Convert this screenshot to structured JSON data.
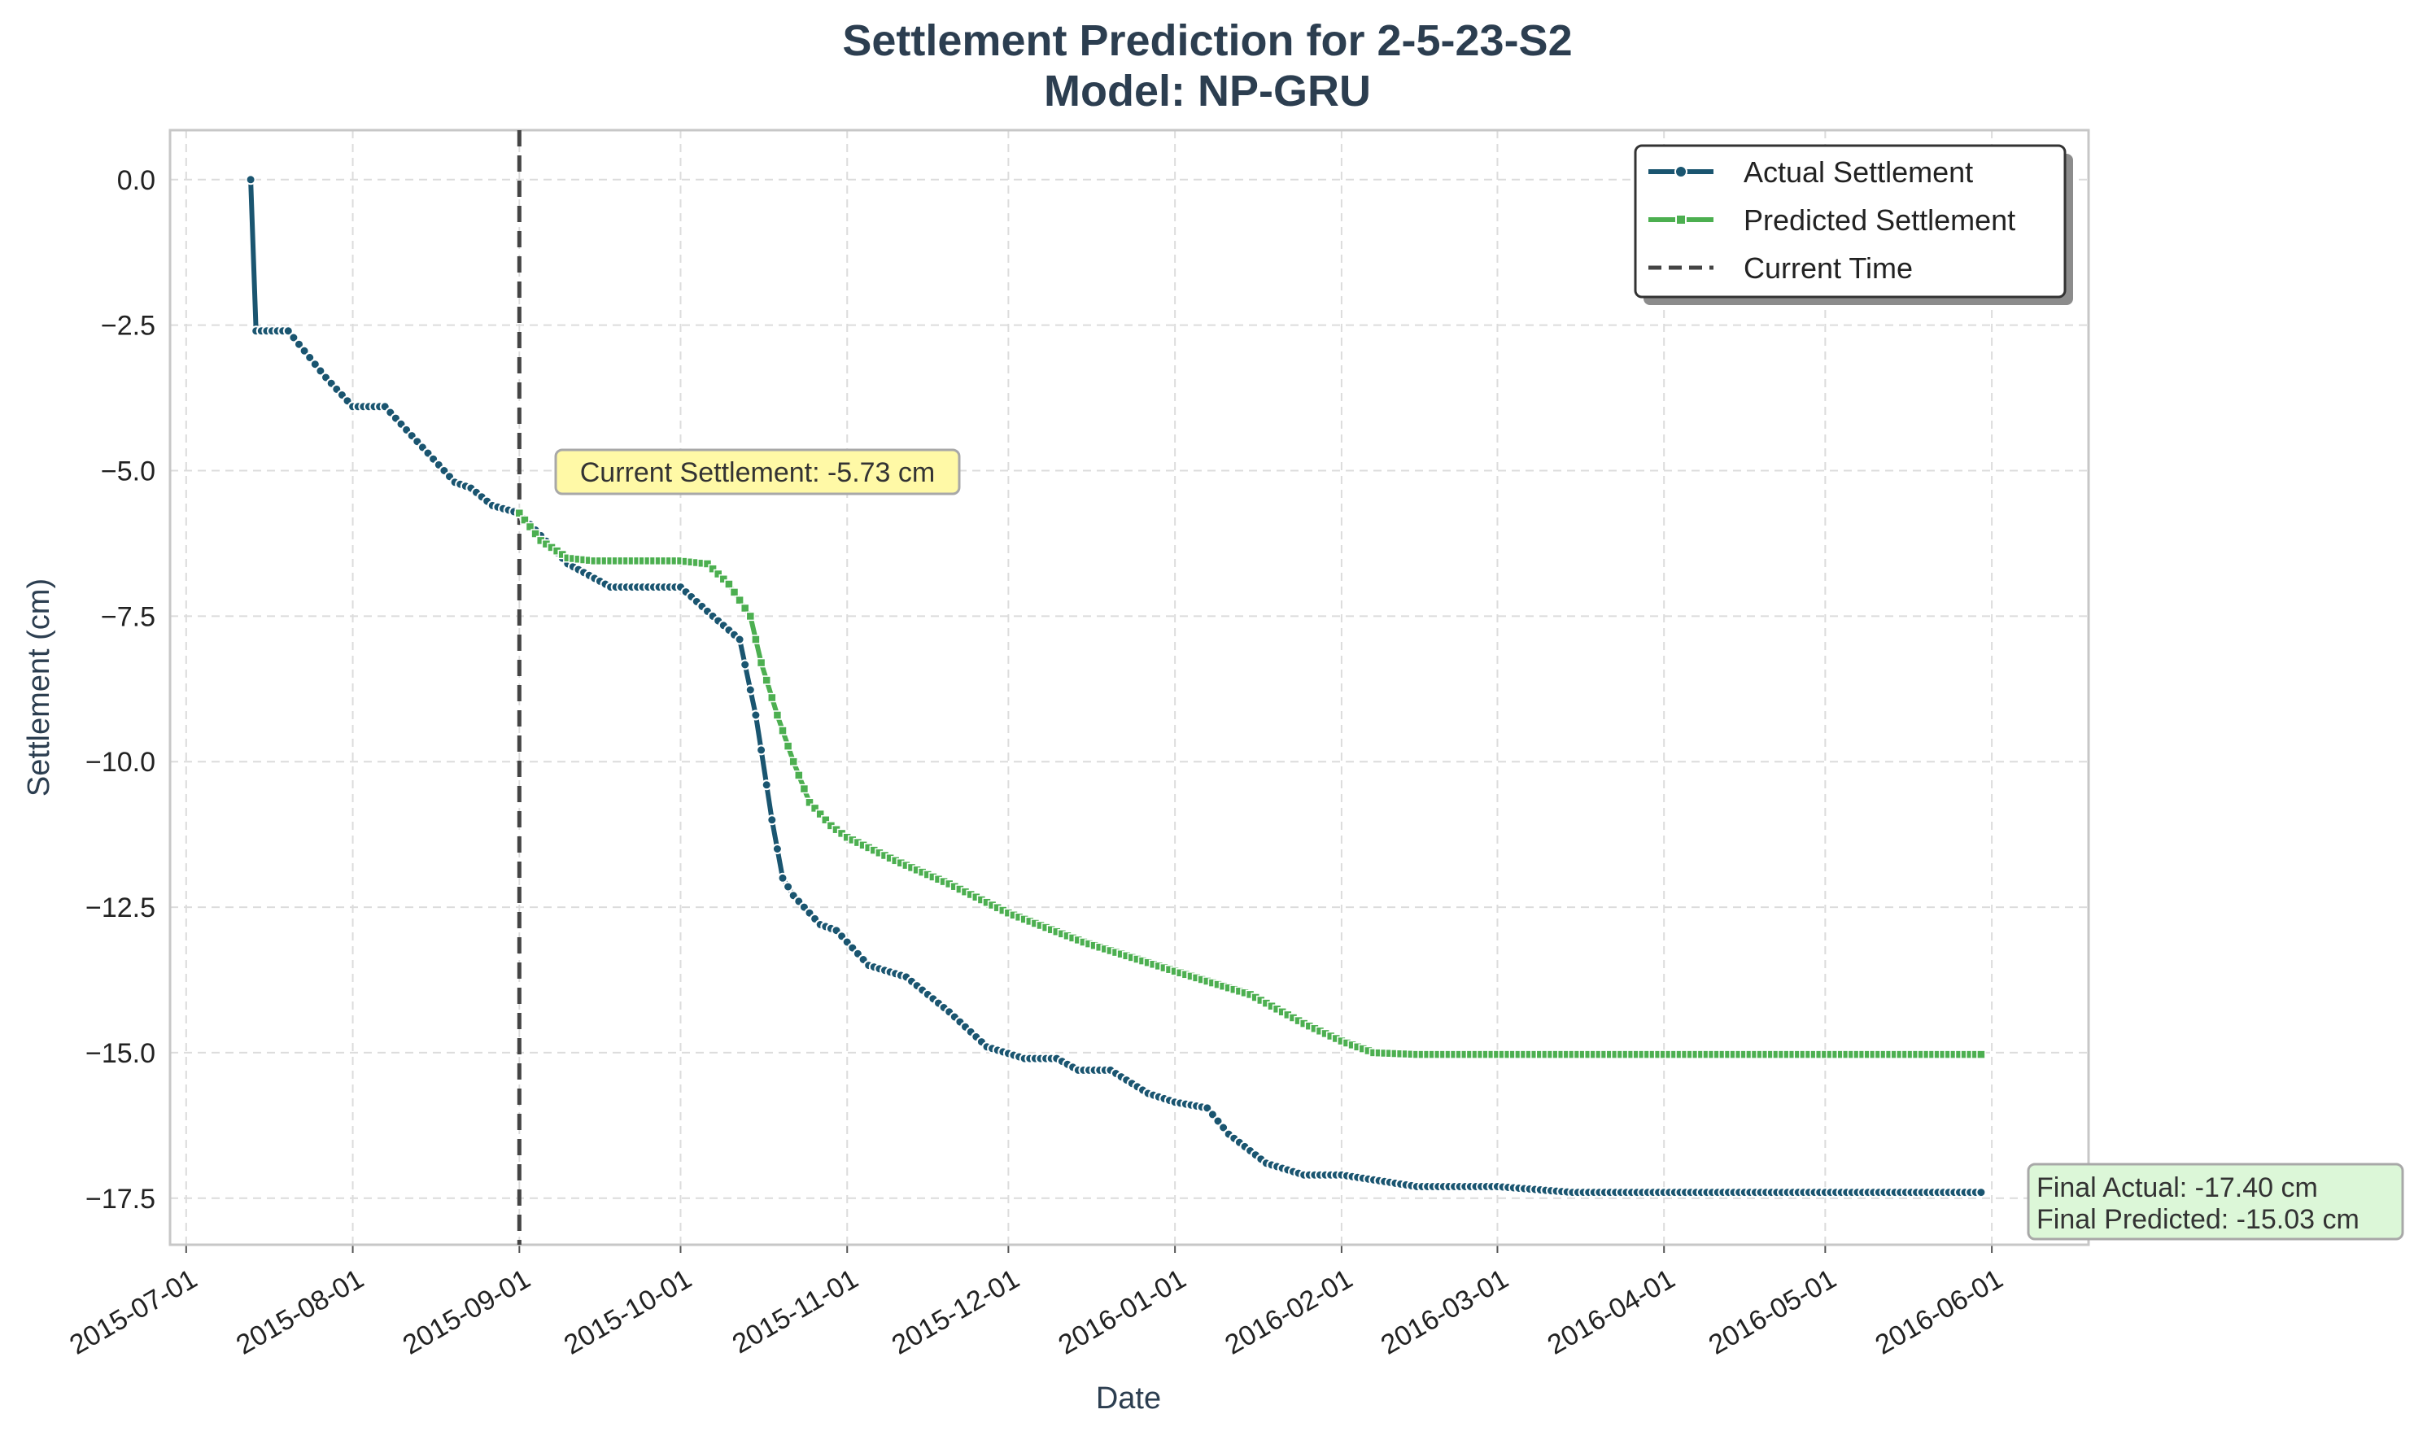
{
  "chart_data": {
    "type": "line",
    "title_line1": "Settlement Prediction for 2-5-23-S2",
    "title_line2": "Model: NP-GRU",
    "xlabel": "Date",
    "ylabel": "Settlement (cm)",
    "xlim": [
      "2015-06-28",
      "2016-06-19"
    ],
    "ylim": [
      -18.3,
      0.85
    ],
    "x_ticks": [
      "2015-07-01",
      "2015-08-01",
      "2015-09-01",
      "2015-10-01",
      "2015-11-01",
      "2015-12-01",
      "2016-01-01",
      "2016-02-01",
      "2016-03-01",
      "2016-04-01",
      "2016-05-01",
      "2016-06-01"
    ],
    "y_ticks": [
      0.0,
      -2.5,
      -5.0,
      -7.5,
      -10.0,
      -12.5,
      -15.0,
      -17.5
    ],
    "y_tick_labels": [
      "0.0",
      "−2.5",
      "−5.0",
      "−7.5",
      "−10.0",
      "−12.5",
      "−15.0",
      "−17.5"
    ],
    "grid": true,
    "legend_position": "top-right",
    "current_time": "2015-09-01",
    "colors": {
      "actual": "#1a5570",
      "predicted": "#4caf50",
      "current_time": "#444444",
      "annotation_current_bg": "#fff9a6",
      "annotation_final_bg": "#dcf7d8"
    },
    "series": [
      {
        "name": "Actual Settlement",
        "marker": "circle",
        "x": [
          "2015-07-13",
          "2015-07-14",
          "2015-07-20",
          "2015-07-27",
          "2015-08-01",
          "2015-08-07",
          "2015-08-13",
          "2015-08-20",
          "2015-08-23",
          "2015-08-27",
          "2015-09-01",
          "2015-09-10",
          "2015-09-18",
          "2015-09-25",
          "2015-10-01",
          "2015-10-07",
          "2015-10-12",
          "2015-10-15",
          "2015-10-18",
          "2015-10-20",
          "2015-10-22",
          "2015-10-27",
          "2015-10-30",
          "2015-11-05",
          "2015-11-12",
          "2015-11-20",
          "2015-11-27",
          "2015-12-04",
          "2015-12-10",
          "2015-12-14",
          "2015-12-20",
          "2015-12-27",
          "2016-01-01",
          "2016-01-07",
          "2016-01-11",
          "2016-01-18",
          "2016-01-25",
          "2016-02-01",
          "2016-02-15",
          "2016-03-01",
          "2016-03-15",
          "2016-04-01",
          "2016-05-01",
          "2016-05-30"
        ],
        "y": [
          0.0,
          -2.6,
          -2.6,
          -3.4,
          -3.9,
          -3.9,
          -4.5,
          -5.2,
          -5.3,
          -5.6,
          -5.73,
          -6.6,
          -7.0,
          -7.0,
          -7.0,
          -7.5,
          -7.9,
          -9.2,
          -11.0,
          -12.0,
          -12.3,
          -12.8,
          -12.9,
          -13.5,
          -13.7,
          -14.3,
          -14.9,
          -15.1,
          -15.1,
          -15.3,
          -15.3,
          -15.7,
          -15.85,
          -15.95,
          -16.4,
          -16.9,
          -17.1,
          -17.1,
          -17.3,
          -17.3,
          -17.4,
          -17.4,
          -17.4,
          -17.4
        ]
      },
      {
        "name": "Predicted Settlement",
        "marker": "square",
        "x": [
          "2015-09-01",
          "2015-09-05",
          "2015-09-10",
          "2015-09-15",
          "2015-09-20",
          "2015-09-25",
          "2015-10-01",
          "2015-10-06",
          "2015-10-10",
          "2015-10-14",
          "2015-10-16",
          "2015-10-19",
          "2015-10-22",
          "2015-10-25",
          "2015-10-29",
          "2015-11-01",
          "2015-11-10",
          "2015-11-20",
          "2015-12-01",
          "2015-12-15",
          "2016-01-01",
          "2016-01-15",
          "2016-01-25",
          "2016-02-01",
          "2016-02-07",
          "2016-02-15",
          "2016-03-01",
          "2016-04-01",
          "2016-05-01",
          "2016-05-30"
        ],
        "y": [
          -5.73,
          -6.2,
          -6.5,
          -6.55,
          -6.55,
          -6.55,
          -6.55,
          -6.6,
          -6.95,
          -7.5,
          -8.3,
          -9.2,
          -10.0,
          -10.7,
          -11.1,
          -11.3,
          -11.7,
          -12.1,
          -12.6,
          -13.1,
          -13.6,
          -14.0,
          -14.5,
          -14.8,
          -15.0,
          -15.03,
          -15.03,
          -15.03,
          -15.03,
          -15.03
        ]
      }
    ],
    "current_time_label": "Current Time",
    "annotation_current": "Current Settlement: -5.73 cm",
    "annotation_final_actual": "Final Actual: -17.40 cm",
    "annotation_final_predicted": "Final Predicted: -15.03 cm"
  }
}
